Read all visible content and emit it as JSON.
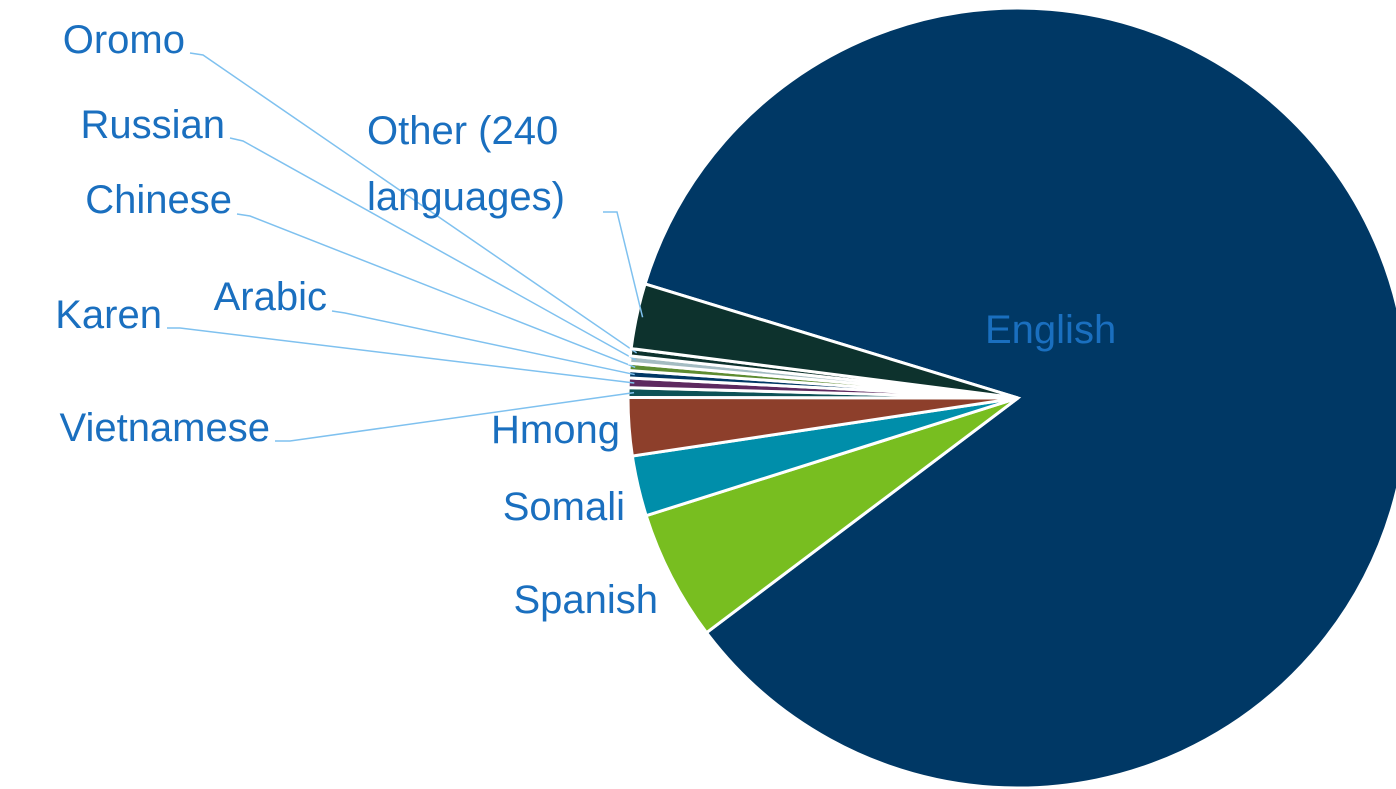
{
  "chart_data": {
    "type": "pie",
    "categories": [
      "English",
      "Spanish",
      "Somali",
      "Hmong",
      "Vietnamese",
      "Karen",
      "Arabic",
      "Chinese",
      "Russian",
      "Oromo",
      "Other (240 languages)"
    ],
    "values": [
      85,
      5.4,
      2.5,
      2.4,
      0.4,
      0.4,
      0.3,
      0.3,
      0.3,
      0.3,
      2.7
    ],
    "colors": [
      "#003865",
      "#78be20",
      "#008eaa",
      "#8d3f2b",
      "#0d5257",
      "#5d295f",
      "#003865",
      "#5e8c31",
      "#a4bcc2",
      "#0d322d",
      "#0d322d"
    ]
  }
}
